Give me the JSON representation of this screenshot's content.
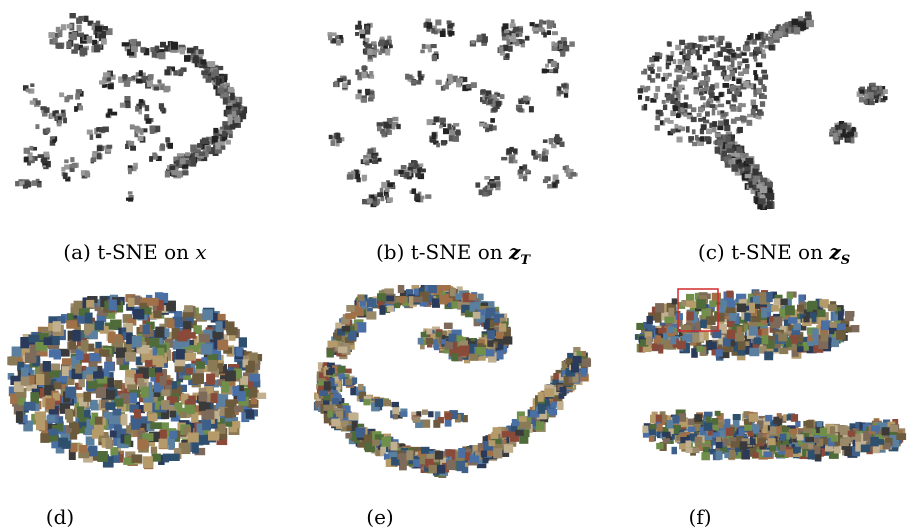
{
  "figure": {
    "top_row": [
      {
        "id": "a",
        "tag": "(a)",
        "method": "t-SNE on",
        "symbol": "x",
        "subscript": ""
      },
      {
        "id": "b",
        "tag": "(b)",
        "method": "t-SNE on",
        "symbol": "z",
        "subscript": "T"
      },
      {
        "id": "c",
        "tag": "(c)",
        "method": "t-SNE on",
        "symbol": "z",
        "subscript": "S"
      }
    ],
    "bottom_row_tags": [
      "(d)",
      "(e)",
      "(f)"
    ],
    "colors": {
      "mono_thumb": "#3a3a3a",
      "mono_thumb_light": "#9a9a9a",
      "highlight_box": "#d22a2a"
    }
  }
}
